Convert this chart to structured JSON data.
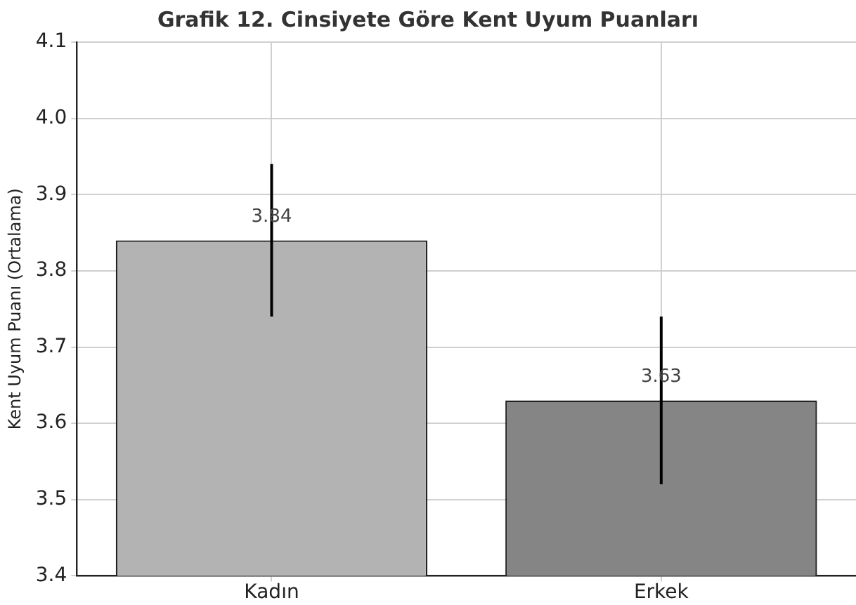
{
  "chart_data": {
    "type": "bar",
    "title": "Grafik 12. Cinsiyete Göre Kent Uyum Puanları",
    "ylabel": "Kent Uyum Puanı (Ortalama)",
    "categories": [
      "Kadın",
      "Erkek"
    ],
    "values": [
      3.84,
      3.63
    ],
    "colors": [
      "#b3b3b3",
      "#858585"
    ],
    "errors": [
      0.1,
      0.11
    ],
    "ylim": [
      3.4,
      4.1
    ],
    "yticks": [
      {
        "value": 3.4,
        "label": "3.4"
      },
      {
        "value": 3.5,
        "label": "3.5"
      },
      {
        "value": 3.6,
        "label": "3.6"
      },
      {
        "value": 3.7,
        "label": "3.7"
      },
      {
        "value": 3.8,
        "label": "3.8"
      },
      {
        "value": 3.9,
        "label": "3.9"
      },
      {
        "value": 4.0,
        "label": "4.0"
      },
      {
        "value": 4.1,
        "label": "4.1"
      }
    ],
    "grid": true,
    "data_labels": true
  }
}
